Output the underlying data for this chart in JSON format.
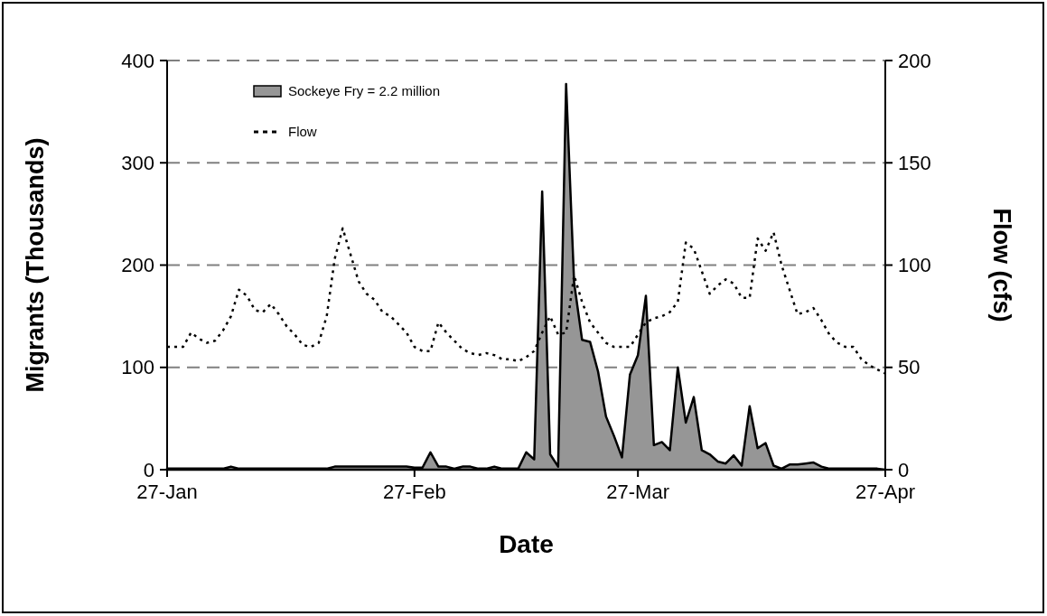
{
  "chart_data": {
    "type": "area",
    "xlabel": "Date",
    "ylabel": "Migrants (Thousands)",
    "y2label": "Flow (cfs)",
    "x": [
      "--01-27",
      "--01-28",
      "--01-29",
      "--01-30",
      "--01-31",
      "--02-01",
      "--02-02",
      "--02-03",
      "--02-04",
      "--02-05",
      "--02-06",
      "--02-07",
      "--02-08",
      "--02-09",
      "--02-10",
      "--02-11",
      "--02-12",
      "--02-13",
      "--02-14",
      "--02-15",
      "--02-16",
      "--02-17",
      "--02-18",
      "--02-19",
      "--02-20",
      "--02-21",
      "--02-22",
      "--02-23",
      "--02-24",
      "--02-25",
      "--02-26",
      "--02-27",
      "--02-28",
      "--03-01",
      "--03-02",
      "--03-03",
      "--03-04",
      "--03-05",
      "--03-06",
      "--03-07",
      "--03-08",
      "--03-09",
      "--03-10",
      "--03-11",
      "--03-12",
      "--03-13",
      "--03-14",
      "--03-15",
      "--03-16",
      "--03-17",
      "--03-18",
      "--03-19",
      "--03-20",
      "--03-21",
      "--03-22",
      "--03-23",
      "--03-24",
      "--03-25",
      "--03-26",
      "--03-27",
      "--03-28",
      "--03-29",
      "--03-30",
      "--03-31",
      "--04-01",
      "--04-02",
      "--04-03",
      "--04-04",
      "--04-05",
      "--04-06",
      "--04-07",
      "--04-08",
      "--04-09",
      "--04-10",
      "--04-11",
      "--04-12",
      "--04-13",
      "--04-14",
      "--04-15",
      "--04-16",
      "--04-17",
      "--04-18",
      "--04-19",
      "--04-20",
      "--04-21",
      "--04-22",
      "--04-23",
      "--04-24",
      "--04-25",
      "--04-26",
      "--04-27"
    ],
    "series": [
      {
        "name": "Sockeye Fry = 2.2 million",
        "type": "area",
        "color": "#969696",
        "values": [
          1,
          1,
          1,
          1,
          1,
          1,
          1,
          1,
          3,
          1,
          1,
          1,
          1,
          1,
          1,
          1,
          1,
          1,
          1,
          1,
          1,
          3,
          3,
          3,
          3,
          3,
          3,
          3,
          3,
          3,
          3,
          2,
          2,
          17,
          3,
          3,
          1,
          3,
          3,
          1,
          1,
          3,
          1,
          1,
          1,
          17,
          10,
          272,
          15,
          3,
          377,
          183,
          127,
          125,
          96,
          52,
          33,
          12,
          93,
          112,
          170,
          24,
          27,
          19,
          100,
          46,
          71,
          19,
          15,
          8,
          6,
          14,
          4,
          62,
          21,
          26,
          4,
          1,
          5,
          5,
          6,
          7,
          3,
          1,
          1,
          1,
          1,
          1,
          1,
          1,
          0
        ]
      },
      {
        "name": "Flow",
        "type": "line",
        "axis": "y2",
        "color": "#000000",
        "line_style": "dotted",
        "values": [
          60,
          60,
          60,
          67,
          64,
          62,
          63,
          68,
          75,
          88,
          85,
          78,
          77,
          81,
          76,
          70,
          66,
          61,
          60,
          62,
          75,
          103,
          118,
          105,
          92,
          86,
          83,
          77,
          75,
          71,
          67,
          60,
          58,
          58,
          72,
          67,
          63,
          59,
          57,
          56,
          57,
          56,
          54,
          54,
          53,
          55,
          58,
          67,
          75,
          66,
          67,
          95,
          82,
          72,
          67,
          62,
          60,
          60,
          60,
          66,
          72,
          74,
          75,
          77,
          82,
          111,
          108,
          97,
          86,
          90,
          93,
          91,
          84,
          84,
          113,
          107,
          116,
          100,
          88,
          76,
          77,
          79,
          73,
          66,
          62,
          60,
          60,
          54,
          51,
          49,
          47
        ]
      }
    ],
    "xlim": [
      "--01-27",
      "--04-27"
    ],
    "xticks": [
      {
        "value": "--01-27",
        "label": "27-Jan"
      },
      {
        "value": "--02-27",
        "label": "27-Feb"
      },
      {
        "value": "--03-27",
        "label": "27-Mar"
      },
      {
        "value": "--04-27",
        "label": "27-Apr"
      }
    ],
    "ylim": [
      0,
      400
    ],
    "yticks": [
      0,
      100,
      200,
      300,
      400
    ],
    "y2lim": [
      0,
      200
    ],
    "y2ticks": [
      0,
      50,
      100,
      150,
      200
    ],
    "grid": "y",
    "legend": "top left"
  }
}
